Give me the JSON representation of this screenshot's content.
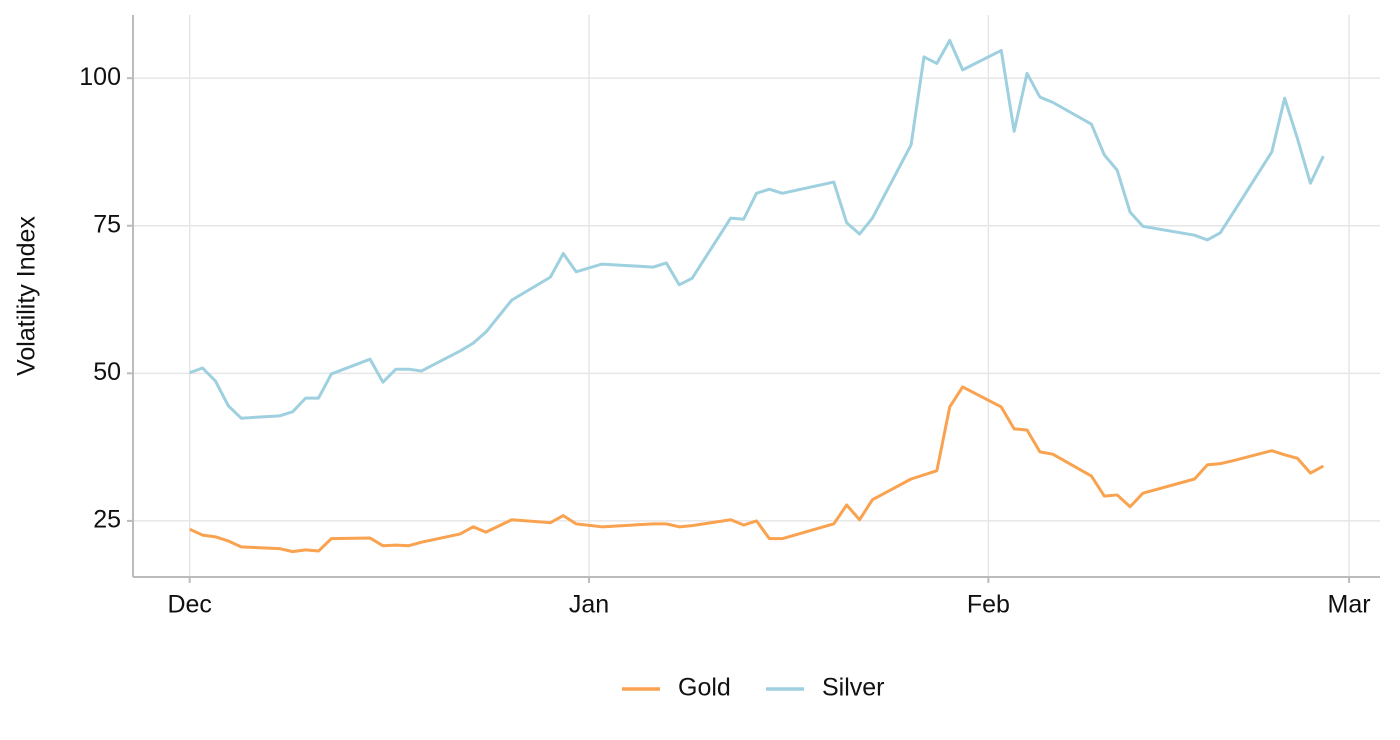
{
  "chart_data": {
    "type": "line",
    "y_label": "Volatility Index",
    "x": [
      0,
      1,
      2,
      3,
      4,
      7,
      8,
      9,
      10,
      11,
      14,
      15,
      16,
      17,
      18,
      21,
      22,
      23,
      25,
      28,
      29,
      30,
      32,
      36,
      37,
      38,
      39,
      42,
      43,
      44,
      45,
      46,
      50,
      51,
      52,
      53,
      56,
      57,
      58,
      59,
      60,
      63,
      64,
      65,
      66,
      67,
      70,
      71,
      72,
      73,
      74,
      78,
      79,
      80,
      81,
      84,
      85,
      86,
      87,
      88
    ],
    "series": [
      {
        "name": "Gold",
        "color": "#f9a24f",
        "values": [
          23.6,
          22.6,
          22.3,
          21.6,
          20.6,
          20.3,
          19.8,
          20.1,
          19.9,
          22.0,
          22.1,
          20.8,
          20.9,
          20.8,
          21.4,
          22.8,
          24.0,
          23.1,
          25.2,
          24.7,
          25.9,
          24.5,
          24.0,
          24.5,
          24.5,
          24.0,
          24.2,
          25.2,
          24.3,
          25.0,
          22.0,
          22.0,
          24.5,
          27.7,
          25.2,
          28.6,
          32.1,
          32.8,
          33.5,
          44.3,
          47.7,
          44.3,
          40.6,
          40.4,
          36.7,
          36.3,
          32.6,
          29.2,
          29.4,
          27.4,
          29.7,
          32.1,
          34.5,
          34.7,
          35.2,
          36.9,
          36.2,
          35.6,
          33.1,
          34.3
        ]
      },
      {
        "name": "Silver",
        "color": "#9ed0df",
        "values": [
          50.1,
          50.9,
          48.7,
          44.5,
          42.4,
          42.8,
          43.5,
          45.8,
          45.8,
          49.9,
          52.4,
          48.5,
          50.7,
          50.7,
          50.4,
          53.8,
          55.1,
          57.0,
          62.4,
          66.3,
          70.3,
          67.2,
          68.5,
          68.0,
          68.7,
          65.0,
          66.1,
          76.3,
          76.1,
          80.5,
          81.2,
          80.5,
          82.4,
          75.5,
          73.6,
          76.3,
          88.7,
          103.6,
          102.5,
          106.4,
          101.4,
          104.7,
          91.0,
          100.8,
          96.8,
          95.9,
          92.2,
          87.0,
          84.4,
          77.3,
          74.9,
          73.4,
          72.6,
          73.8,
          77.2,
          87.5,
          96.6,
          89.7,
          82.2,
          86.8
        ]
      }
    ],
    "xlim": [
      -4.4,
      92.4
    ],
    "xticks": [
      {
        "value": 0,
        "label": "Dec"
      },
      {
        "value": 31,
        "label": "Jan"
      },
      {
        "value": 62,
        "label": "Feb"
      },
      {
        "value": 90,
        "label": "Mar"
      }
    ],
    "ylim": [
      15.5,
      110.7
    ],
    "yticks": [
      25,
      50,
      75,
      100
    ],
    "grid": true,
    "legend": "bottom"
  }
}
